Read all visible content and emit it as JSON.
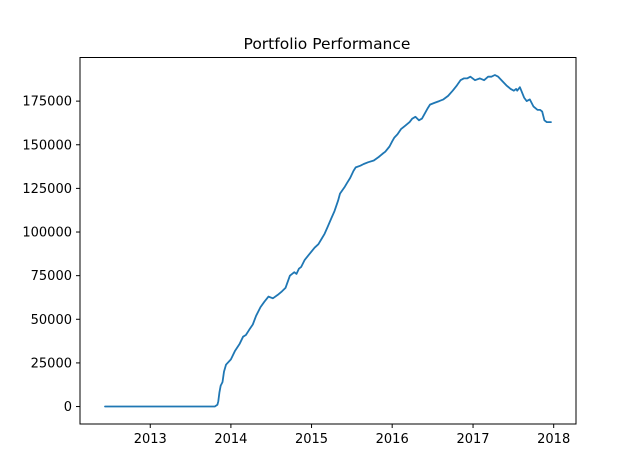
{
  "chart_data": {
    "type": "line",
    "title": "Portfolio Performance",
    "xlabel": "",
    "ylabel": "",
    "x_ticks": [
      "2013",
      "2014",
      "2015",
      "2016",
      "2017",
      "2018"
    ],
    "y_ticks": [
      "0",
      "25000",
      "50000",
      "75000",
      "100000",
      "125000",
      "150000",
      "175000"
    ],
    "xlim": [
      "2012-02-18",
      "2018-04-12"
    ],
    "ylim": [
      -10000,
      200000
    ],
    "grid": false,
    "legend": "none",
    "line_color": "#1f77b4",
    "series": [
      {
        "x": [
          "2012-06-10",
          "2013-01-01",
          "2013-06-01",
          "2013-10-20",
          "2013-11-01",
          "2013-11-05",
          "2013-11-10",
          "2013-11-16",
          "2013-11-24",
          "2013-12-01",
          "2013-12-10",
          "2014-01-01",
          "2014-01-20",
          "2014-02-10",
          "2014-02-25",
          "2014-03-10",
          "2014-03-25",
          "2014-04-10",
          "2014-04-25",
          "2014-05-15",
          "2014-06-01",
          "2014-06-20",
          "2014-07-10",
          "2014-08-01",
          "2014-08-20",
          "2014-09-05",
          "2014-09-25",
          "2014-10-15",
          "2014-10-25",
          "2014-11-05",
          "2014-11-15",
          "2014-12-01",
          "2014-12-20",
          "2015-01-15",
          "2015-02-01",
          "2015-02-15",
          "2015-03-01",
          "2015-03-15",
          "2015-04-01",
          "2015-04-15",
          "2015-05-01",
          "2015-05-10",
          "2015-06-01",
          "2015-06-10",
          "2015-06-25",
          "2015-07-10",
          "2015-07-20",
          "2015-08-10",
          "2015-08-25",
          "2015-09-15",
          "2015-10-10",
          "2015-11-01",
          "2015-11-20",
          "2015-12-01",
          "2015-12-20",
          "2016-01-01",
          "2016-01-10",
          "2016-01-25",
          "2016-02-10",
          "2016-03-01",
          "2016-03-20",
          "2016-04-01",
          "2016-04-15",
          "2016-05-01",
          "2016-05-15",
          "2016-06-10",
          "2016-06-20",
          "2016-07-10",
          "2016-08-01",
          "2016-08-20",
          "2016-09-10",
          "2016-10-01",
          "2016-10-20",
          "2016-11-05",
          "2016-11-20",
          "2016-12-05",
          "2016-12-20",
          "2017-01-10",
          "2017-02-01",
          "2017-02-20",
          "2017-03-10",
          "2017-03-25",
          "2017-04-10",
          "2017-04-25",
          "2017-05-10",
          "2017-06-01",
          "2017-06-20",
          "2017-07-05",
          "2017-07-15",
          "2017-07-20",
          "2017-08-01",
          "2017-08-20",
          "2017-09-01",
          "2017-09-15",
          "2017-10-01",
          "2017-10-20",
          "2017-11-01",
          "2017-11-10",
          "2017-11-20",
          "2017-12-01",
          "2017-12-20"
        ],
        "y": [
          0,
          0,
          0,
          0,
          1000,
          3000,
          8000,
          12000,
          14000,
          20000,
          24000,
          27000,
          32000,
          36000,
          40000,
          41000,
          44000,
          47000,
          52000,
          57000,
          60000,
          63000,
          62000,
          64000,
          66000,
          68000,
          75000,
          77000,
          76000,
          79000,
          80000,
          84000,
          87000,
          91000,
          93000,
          96000,
          99000,
          103000,
          108000,
          112000,
          118000,
          122000,
          126000,
          128000,
          131000,
          135000,
          137000,
          138000,
          139000,
          140000,
          141000,
          143000,
          145000,
          146000,
          149000,
          152000,
          154000,
          156000,
          159000,
          161000,
          163000,
          165000,
          166000,
          164000,
          165000,
          171000,
          173000,
          174000,
          175000,
          176000,
          178000,
          181000,
          184000,
          187000,
          188000,
          188000,
          189000,
          187000,
          188000,
          187000,
          189000,
          189000,
          190000,
          189000,
          187000,
          184000,
          182000,
          181000,
          182000,
          181000,
          183000,
          177000,
          175000,
          176000,
          172000,
          170000,
          170000,
          169000,
          164000,
          163000,
          163000
        ]
      }
    ]
  }
}
